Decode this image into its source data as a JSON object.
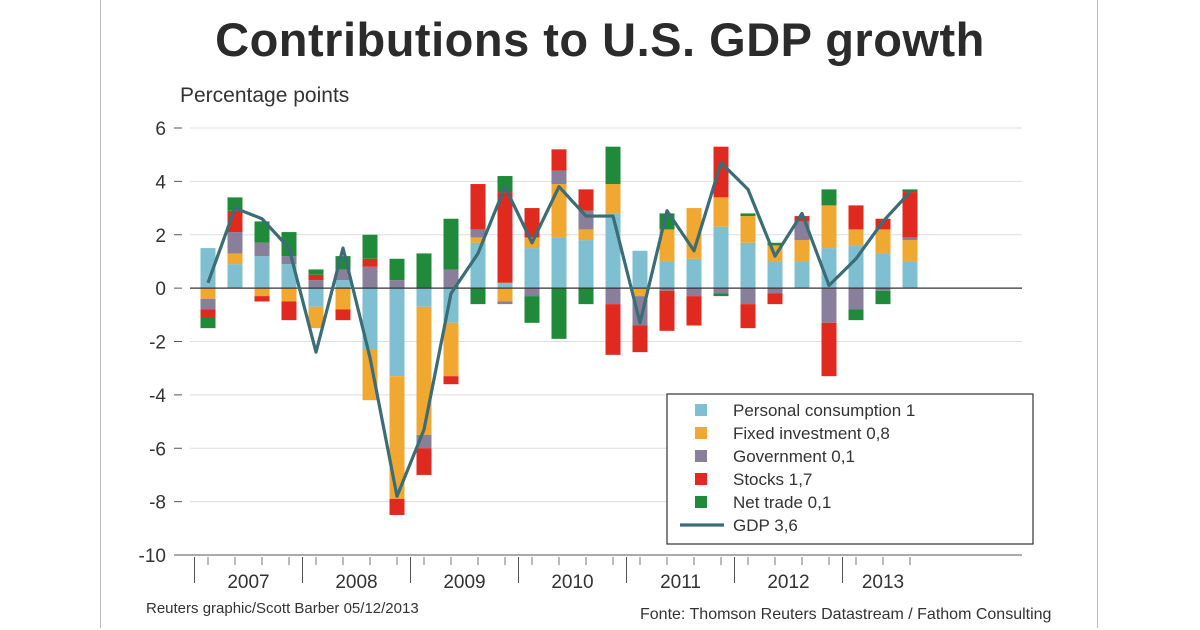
{
  "title": "Contributions to U.S. GDP growth",
  "credit": "Reuters graphic/Scott Barber 05/12/2013",
  "source": "Fonte: Thomson Reuters Datastream / Fathom Consulting",
  "chart_data": {
    "type": "bar",
    "subtype": "stacked bar with line overlay",
    "title": "Contributions to U.S. GDP growth",
    "ylabel": "Percentage points",
    "xlabel": "",
    "ylim": [
      -10,
      6
    ],
    "yticks": [
      -10,
      -8,
      -6,
      -4,
      -2,
      0,
      2,
      4,
      6
    ],
    "ytick_labels": [
      "-10",
      "-8",
      "-6",
      "-4",
      "-2",
      "0",
      "2",
      "4",
      "6"
    ],
    "grid": true,
    "legend_position": "bottom-right",
    "year_labels": [
      "2007",
      "2008",
      "2009",
      "2010",
      "2011",
      "2012",
      "2013"
    ],
    "year_groups": [
      {
        "label": "2007",
        "start": 0,
        "end": 3
      },
      {
        "label": "2008",
        "start": 4,
        "end": 7
      },
      {
        "label": "2009",
        "start": 8,
        "end": 11
      },
      {
        "label": "2010",
        "start": 12,
        "end": 15
      },
      {
        "label": "2011",
        "start": 16,
        "end": 19
      },
      {
        "label": "2012",
        "start": 20,
        "end": 23
      },
      {
        "label": "2013",
        "start": 24,
        "end": 26
      }
    ],
    "categories": [
      "2007 Q1",
      "2007 Q2",
      "2007 Q3",
      "2007 Q4",
      "2008 Q1",
      "2008 Q2",
      "2008 Q3",
      "2008 Q4",
      "2009 Q1",
      "2009 Q2",
      "2009 Q3",
      "2009 Q4",
      "2010 Q1",
      "2010 Q2",
      "2010 Q3",
      "2010 Q4",
      "2011 Q1",
      "2011 Q2",
      "2011 Q3",
      "2011 Q4",
      "2012 Q1",
      "2012 Q2",
      "2012 Q3",
      "2012 Q4",
      "2013 Q1",
      "2013 Q2",
      "2013 Q3"
    ],
    "series": [
      {
        "name": "Personal consumption",
        "legend": "Personal consumption 1",
        "color": "#7fbfd2",
        "values": [
          1.5,
          0.9,
          1.2,
          0.9,
          -0.7,
          0.3,
          -2.3,
          -3.3,
          -0.7,
          -1.3,
          1.7,
          0.2,
          1.5,
          1.9,
          1.8,
          2.8,
          1.4,
          1.0,
          1.1,
          2.3,
          1.7,
          1.0,
          1.0,
          1.5,
          1.6,
          1.3,
          1.0
        ]
      },
      {
        "name": "Fixed investment",
        "legend": "Fixed investment 0,8",
        "color": "#f0a830",
        "values": [
          -0.4,
          0.4,
          -0.3,
          -0.5,
          -0.8,
          -0.8,
          -1.9,
          -4.6,
          -4.8,
          -2.0,
          0.2,
          -0.5,
          0.4,
          2.0,
          0.4,
          1.1,
          -0.3,
          1.2,
          1.9,
          1.1,
          1.0,
          0.6,
          0.8,
          1.6,
          0.6,
          0.9,
          0.8
        ]
      },
      {
        "name": "Government",
        "legend": "Government 0,1",
        "color": "#8a7f9a",
        "values": [
          -0.4,
          0.8,
          0.5,
          0.3,
          0.3,
          0.4,
          0.8,
          0.3,
          -0.5,
          0.7,
          0.3,
          -0.1,
          -0.3,
          0.5,
          0.7,
          -0.6,
          -1.1,
          -0.1,
          -0.3,
          -0.2,
          -0.6,
          -0.2,
          0.7,
          -1.3,
          -0.8,
          -0.1,
          0.1
        ]
      },
      {
        "name": "Stocks",
        "legend": "Stocks 1,7",
        "color": "#e02a1f",
        "values": [
          -0.3,
          0.8,
          -0.2,
          -0.7,
          0.2,
          -0.4,
          0.3,
          -0.6,
          -1.0,
          -0.3,
          1.7,
          3.4,
          1.1,
          0.8,
          0.8,
          -1.9,
          -1.0,
          -1.5,
          -1.1,
          1.9,
          -0.9,
          -0.4,
          0.2,
          -2.0,
          0.9,
          0.4,
          1.7
        ]
      },
      {
        "name": "Net trade",
        "legend": "Net trade 0,1",
        "color": "#1f8a3a",
        "values": [
          -0.4,
          0.5,
          0.8,
          0.9,
          0.2,
          0.5,
          0.9,
          0.8,
          1.3,
          1.9,
          -0.6,
          0.6,
          -1.0,
          -1.9,
          -0.6,
          1.4,
          0.0,
          0.6,
          0.0,
          -0.1,
          0.1,
          0.1,
          0.0,
          0.6,
          -0.4,
          -0.5,
          0.1
        ]
      },
      {
        "name": "GDP",
        "legend": "GDP 3,6",
        "color": "#3a6d76",
        "kind": "line",
        "values": [
          0.2,
          3.0,
          2.6,
          1.5,
          -2.4,
          1.5,
          -2.6,
          -7.8,
          -5.3,
          -0.2,
          1.3,
          3.8,
          1.7,
          3.8,
          2.7,
          2.7,
          -1.3,
          2.9,
          1.4,
          4.7,
          3.7,
          1.2,
          2.8,
          0.1,
          1.1,
          2.5,
          3.6
        ]
      }
    ]
  }
}
